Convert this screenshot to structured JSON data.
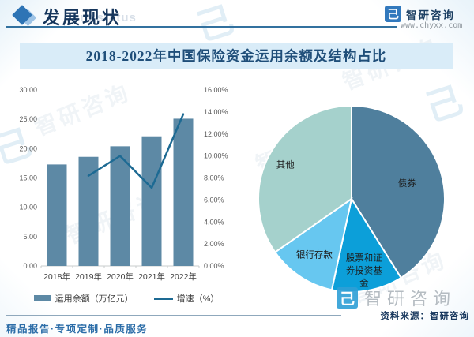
{
  "page": {
    "header": {
      "section_title": "发展现状",
      "section_watermark": "ent status",
      "brand_name": "智研咨询",
      "brand_url": "www.chyxx.com",
      "logo_glyph": "己"
    },
    "title": "2018-2022年中国保险资金运用余额及结构占比",
    "footer": {
      "slogan": "精品报告·专项定制·品质服务",
      "source": "资料来源：智研咨询",
      "watermark_brand": "智研咨询"
    }
  },
  "colors": {
    "bar": "#5d89a5",
    "line": "#1d6a93",
    "banner_bg": "#d9ecf8",
    "title_text": "#1f4e79",
    "header_text": "#16365c",
    "accent": "#2e74b5",
    "axis_line": "#c9ccce"
  },
  "chart_data": [
    {
      "type": "bar",
      "title": "保险资金运用余额及增速",
      "categories": [
        "2018年",
        "2019年",
        "2020年",
        "2021年",
        "2022年"
      ],
      "series": [
        {
          "name": "运用余额（万亿元）",
          "type": "bar",
          "axis": "left",
          "values": [
            17.3,
            18.6,
            20.4,
            22.1,
            25.1
          ]
        },
        {
          "name": "增速（%）",
          "type": "line",
          "axis": "right",
          "values": [
            null,
            8.2,
            10.0,
            7.1,
            13.8
          ]
        }
      ],
      "left_axis": {
        "min": 0,
        "max": 30,
        "step": 5,
        "tick_labels": [
          "0.00",
          "5.00",
          "10.00",
          "15.00",
          "20.00",
          "25.00",
          "30.00"
        ]
      },
      "right_axis": {
        "min": 0,
        "max": 16,
        "step": 2,
        "tick_labels": [
          "0.00%",
          "2.00%",
          "4.00%",
          "6.00%",
          "8.00%",
          "10.00%",
          "12.00%",
          "14.00%",
          "16.00%"
        ]
      },
      "grid": false,
      "legend_position": "bottom"
    },
    {
      "type": "pie",
      "title": "保险资金运用结构占比",
      "start_angle_deg": 0,
      "direction": "clockwise",
      "slices": [
        {
          "label": "债券",
          "label_lines": [
            "债券"
          ],
          "value": 41.1,
          "color": "#4f7f9d"
        },
        {
          "label": "股票和证券投资基金",
          "label_lines": [
            "股票和证",
            "券投资基",
            "金"
          ],
          "value": 12.3,
          "color": "#0c9fd9"
        },
        {
          "label": "银行存款",
          "label_lines": [
            "银行存款"
          ],
          "value": 11.9,
          "color": "#67c7f0"
        },
        {
          "label": "其他",
          "label_lines": [
            "其他"
          ],
          "value": 34.7,
          "color": "#a5d1cc"
        }
      ]
    }
  ]
}
